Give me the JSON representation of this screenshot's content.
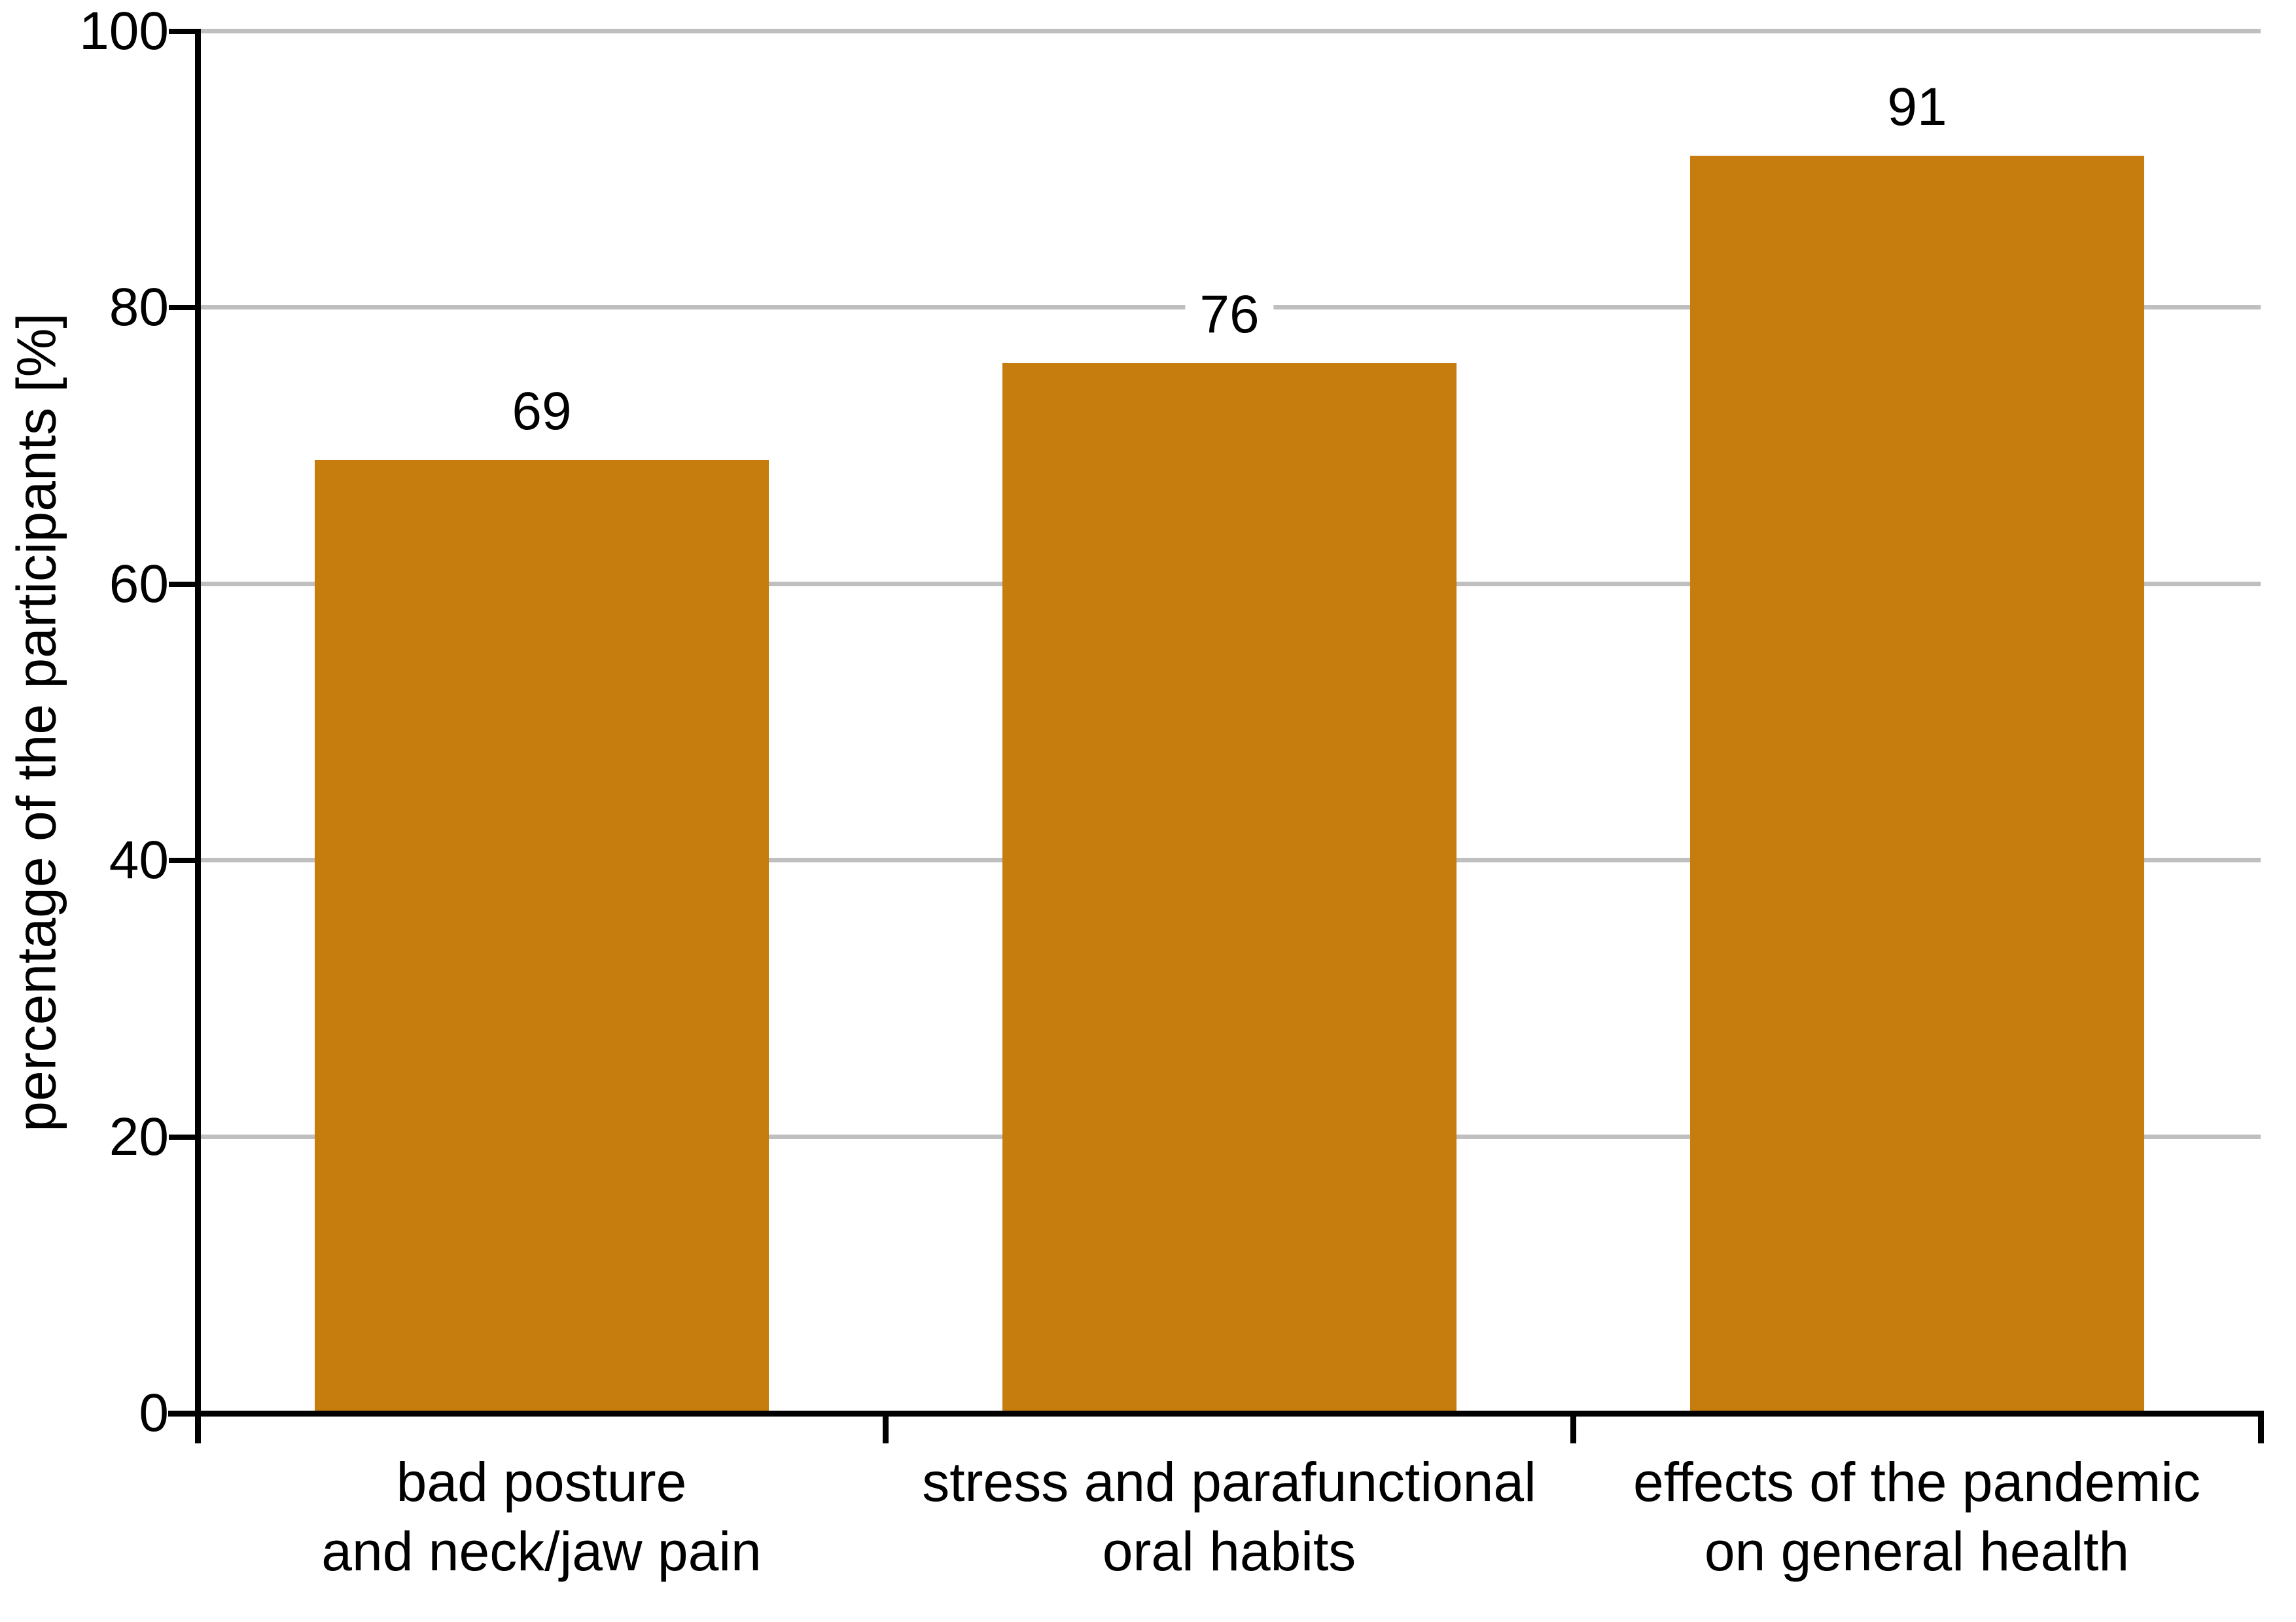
{
  "chart_data": {
    "type": "bar",
    "title": "",
    "xlabel": "",
    "ylabel": "percentage of the participants [%]",
    "categories": [
      [
        "bad posture",
        "and neck/jaw pain"
      ],
      [
        "stress and parafunctional",
        "oral habits"
      ],
      [
        "effects of the pandemic",
        "on general health"
      ]
    ],
    "values": [
      69,
      76,
      91
    ],
    "value_labels": [
      "69",
      "76",
      "91"
    ],
    "ylim": [
      0,
      100
    ],
    "yticks": [
      0,
      20,
      40,
      60,
      80,
      100
    ],
    "grid": "horizontal",
    "legend_position": "none",
    "colors": {
      "bar": "#C67D0E",
      "gridline": "#BFBFBF",
      "axis": "#000000",
      "text": "#000000",
      "background": "#FFFFFF"
    }
  }
}
